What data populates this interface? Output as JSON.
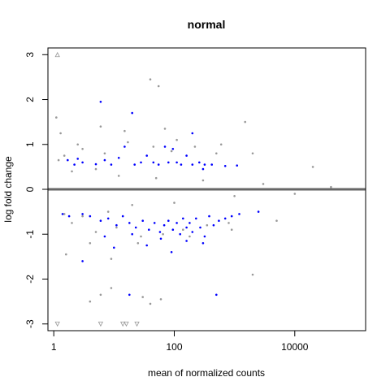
{
  "chart_data": {
    "type": "scatter",
    "title": "normal",
    "xlabel": "mean of normalized counts",
    "ylabel": "log fold change",
    "x_scale": "log10",
    "xlim": [
      0.8,
      150000
    ],
    "ylim": [
      -3.15,
      3.15
    ],
    "x_ticks": [
      {
        "value": 1,
        "label": "1"
      },
      {
        "value": 100,
        "label": "100"
      },
      {
        "value": 10000,
        "label": "10000"
      }
    ],
    "y_ticks": [
      {
        "value": -3,
        "label": "-3"
      },
      {
        "value": -2,
        "label": "-2"
      },
      {
        "value": -1,
        "label": "-1"
      },
      {
        "value": 0,
        "label": "0"
      },
      {
        "value": 1,
        "label": "1"
      },
      {
        "value": 2,
        "label": "2"
      },
      {
        "value": 3,
        "label": "3"
      }
    ],
    "reference_line": {
      "y": 0,
      "color": "#666666"
    },
    "grid": false,
    "legend": "none",
    "colors": {
      "nonsignificant": "#999999",
      "significant": "#0000ff",
      "clipped_outline": "#999999"
    },
    "series": [
      {
        "points": [
          [
            1.2,
            0.65
          ],
          [
            1.5,
            -0.55
          ],
          [
            2,
            0.4
          ],
          [
            3,
            -0.6
          ],
          [
            5,
            0.45
          ],
          [
            8,
            -0.5
          ],
          [
            12,
            0.3
          ],
          [
            20,
            -0.35
          ],
          [
            50,
            0.25
          ],
          [
            100,
            -0.3
          ],
          [
            300,
            0.2
          ],
          [
            1000,
            -0.15
          ],
          [
            3000,
            0.12
          ],
          [
            10000,
            -0.1
          ],
          [
            40000,
            0.05
          ],
          [
            1.1,
            1.6
          ],
          [
            1.3,
            1.25
          ],
          [
            1.6,
            -1.45
          ],
          [
            2.5,
            1.0
          ],
          [
            4,
            -1.2
          ],
          [
            6,
            1.4
          ],
          [
            9,
            -1.55
          ],
          [
            15,
            1.3
          ],
          [
            25,
            -1.2
          ],
          [
            40,
            2.45
          ],
          [
            55,
            2.3
          ],
          [
            70,
            1.35
          ],
          [
            110,
            1.1
          ],
          [
            180,
            -1.05
          ],
          [
            600,
            1.0
          ],
          [
            900,
            -0.9
          ],
          [
            2000,
            0.8
          ],
          [
            5000,
            -0.7
          ],
          [
            20000,
            0.5
          ],
          [
            6,
            -2.35
          ],
          [
            9,
            -2.2
          ],
          [
            4,
            -2.5
          ],
          [
            40,
            -2.55
          ],
          [
            30,
            -2.4
          ],
          [
            60,
            -2.45
          ],
          [
            2000,
            -1.9
          ],
          [
            1500,
            1.5
          ],
          [
            1.5,
            0.75
          ],
          [
            2,
            -0.75
          ],
          [
            3,
            0.9
          ],
          [
            5,
            -0.95
          ],
          [
            7,
            0.8
          ],
          [
            11,
            -0.85
          ],
          [
            17,
            1.05
          ],
          [
            28,
            -1.05
          ],
          [
            45,
            0.95
          ],
          [
            65,
            -1.0
          ],
          [
            90,
            0.85
          ],
          [
            140,
            -0.9
          ],
          [
            220,
            0.95
          ],
          [
            350,
            -0.8
          ],
          [
            500,
            0.8
          ],
          [
            800,
            -0.75
          ]
        ]
      },
      {
        "points": [
          [
            2.2,
            0.55
          ],
          [
            2.5,
            0.68
          ],
          [
            3,
            0.6
          ],
          [
            5,
            0.56
          ],
          [
            9,
            0.55
          ],
          [
            12,
            0.7
          ],
          [
            22,
            0.55
          ],
          [
            28,
            0.6
          ],
          [
            35,
            0.75
          ],
          [
            45,
            0.6
          ],
          [
            55,
            0.55
          ],
          [
            70,
            0.95
          ],
          [
            80,
            0.6
          ],
          [
            95,
            0.9
          ],
          [
            110,
            0.6
          ],
          [
            130,
            0.55
          ],
          [
            160,
            0.75
          ],
          [
            200,
            0.55
          ],
          [
            260,
            0.6
          ],
          [
            320,
            0.55
          ],
          [
            420,
            0.55
          ],
          [
            700,
            0.52
          ],
          [
            1100,
            0.53
          ],
          [
            6,
            1.95
          ],
          [
            20,
            1.7
          ],
          [
            200,
            1.25
          ],
          [
            15,
            0.95
          ],
          [
            7,
            0.65
          ],
          [
            1.7,
            0.65
          ],
          [
            300,
            0.45
          ],
          [
            1.4,
            -0.55
          ],
          [
            1.8,
            -0.6
          ],
          [
            3,
            -0.55
          ],
          [
            4,
            -0.6
          ],
          [
            6,
            -0.7
          ],
          [
            8,
            -0.65
          ],
          [
            11,
            -0.8
          ],
          [
            14,
            -0.6
          ],
          [
            18,
            -0.75
          ],
          [
            23,
            -0.85
          ],
          [
            30,
            -0.7
          ],
          [
            38,
            -0.9
          ],
          [
            47,
            -0.75
          ],
          [
            58,
            -0.95
          ],
          [
            68,
            -0.8
          ],
          [
            80,
            -0.7
          ],
          [
            95,
            -0.9
          ],
          [
            110,
            -0.75
          ],
          [
            125,
            -1.0
          ],
          [
            140,
            -0.65
          ],
          [
            160,
            -0.85
          ],
          [
            180,
            -0.75
          ],
          [
            200,
            -0.95
          ],
          [
            230,
            -0.65
          ],
          [
            270,
            -0.85
          ],
          [
            320,
            -1.05
          ],
          [
            380,
            -0.6
          ],
          [
            450,
            -0.8
          ],
          [
            550,
            -0.7
          ],
          [
            700,
            -0.65
          ],
          [
            900,
            -0.6
          ],
          [
            1200,
            -0.55
          ],
          [
            2500,
            -0.5
          ],
          [
            3,
            -1.6
          ],
          [
            18,
            -2.35
          ],
          [
            500,
            -2.35
          ],
          [
            10,
            -1.3
          ],
          [
            35,
            -1.25
          ],
          [
            90,
            -1.4
          ],
          [
            160,
            -1.15
          ],
          [
            300,
            -1.2
          ],
          [
            60,
            -1.1
          ],
          [
            20,
            -1.0
          ],
          [
            7,
            -1.05
          ]
        ]
      },
      {
        "points": [
          [
            1.15,
            3.0
          ],
          [
            1.15,
            -3.0
          ],
          [
            6,
            -3.0
          ],
          [
            14,
            -3.0
          ],
          [
            16,
            -3.0
          ],
          [
            24,
            -3.0
          ]
        ]
      }
    ]
  }
}
